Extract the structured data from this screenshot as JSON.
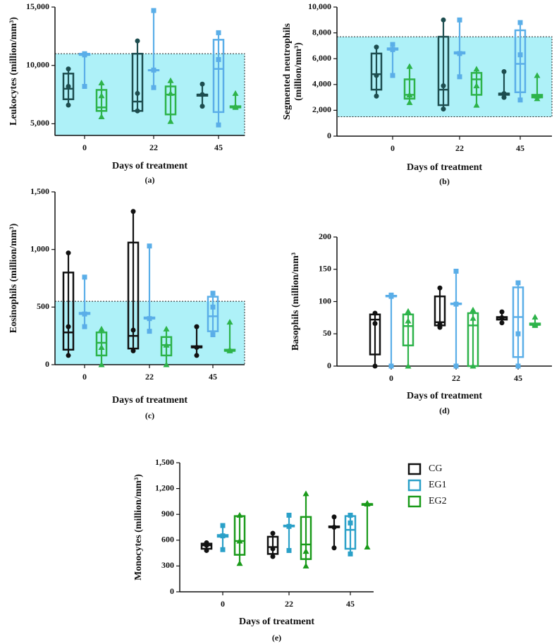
{
  "chart_data": [
    {
      "type": "box",
      "panel": "(a)",
      "ylabel": [
        "Leukocytes (million/mm³)"
      ],
      "xlabel": "Days of treatment",
      "categories": [
        "0",
        "22",
        "45"
      ],
      "ylim": [
        4000,
        15000
      ],
      "yticks": [
        {
          "value": 5000,
          "label": "5,000"
        },
        {
          "value": 10000,
          "label": "10,000"
        },
        {
          "value": 15000,
          "label": "15,000"
        }
      ],
      "reference_range": [
        4000,
        11000
      ],
      "series": [
        {
          "color": "#1d4d4f",
          "boxes": [
            {
              "min": 6600,
              "q1": 7100,
              "median": 8000,
              "q3": 9300,
              "max": 9700,
              "points": [
                6600,
                8200,
                9700
              ]
            },
            {
              "min": 6000,
              "q1": 6100,
              "median": 6900,
              "q3": 11000,
              "max": 12100,
              "points": [
                6100,
                7600,
                12100
              ]
            },
            {
              "min": 6500,
              "q1": 7400,
              "median": 7500,
              "q3": 7500,
              "max": 8400,
              "points": [
                6500,
                7500,
                8400
              ]
            }
          ]
        },
        {
          "color": "#5aaee8",
          "boxes": [
            {
              "min": 8200,
              "q1": 10900,
              "median": 10900,
              "q3": 11000,
              "max": 11000,
              "points": [
                8200,
                10900,
                11000
              ]
            },
            {
              "min": 8100,
              "q1": 9600,
              "median": 9600,
              "q3": 9600,
              "max": 14700,
              "points": [
                8100,
                9600,
                14700
              ]
            },
            {
              "min": 4900,
              "q1": 6000,
              "median": 9700,
              "q3": 12200,
              "max": 12800,
              "points": [
                4900,
                10500,
                12800
              ]
            }
          ]
        },
        {
          "color": "#2db34a",
          "boxes": [
            {
              "min": 5600,
              "q1": 6100,
              "median": 6400,
              "q3": 7900,
              "max": 8500,
              "points": [
                5600,
                7400,
                8500
              ]
            },
            {
              "min": 5200,
              "q1": 5800,
              "median": 7500,
              "q3": 8200,
              "max": 8700,
              "points": [
                5200,
                7600,
                8700
              ]
            },
            {
              "min": 6400,
              "q1": 6400,
              "median": 6400,
              "q3": 6500,
              "max": 7600,
              "points": [
                6400,
                6500,
                7600
              ]
            }
          ]
        }
      ]
    },
    {
      "type": "box",
      "panel": "(b)",
      "ylabel": [
        "Segmented neutrophils",
        "(million/mm³)"
      ],
      "xlabel": "Days of treatment",
      "categories": [
        "0",
        "22",
        "45"
      ],
      "ylim": [
        0,
        10000
      ],
      "yticks": [
        0,
        {
          "value": 2000,
          "label": "2,000"
        },
        {
          "value": 4000,
          "label": "4,000"
        },
        {
          "value": 6000,
          "label": "6,000"
        },
        {
          "value": 8000,
          "label": "8,000"
        },
        {
          "value": 10000,
          "label": "10,000"
        }
      ],
      "reference_range": [
        1500,
        7700
      ],
      "series": [
        {
          "color": "#1d4d4f",
          "boxes": [
            {
              "min": 3100,
              "q1": 3600,
              "median": 4800,
              "q3": 6400,
              "max": 6900,
              "points": [
                3100,
                4700,
                6900
              ]
            },
            {
              "min": 2100,
              "q1": 2400,
              "median": 3600,
              "q3": 7700,
              "max": 9000,
              "points": [
                2100,
                3900,
                9000
              ]
            },
            {
              "min": 3000,
              "q1": 3200,
              "median": 3300,
              "q3": 3300,
              "max": 5000,
              "points": [
                3000,
                3300,
                5000
              ]
            }
          ]
        },
        {
          "color": "#5aaee8",
          "boxes": [
            {
              "min": 4700,
              "q1": 6700,
              "median": 6700,
              "q3": 6800,
              "max": 7100,
              "points": [
                4700,
                6700,
                7100
              ]
            },
            {
              "min": 4600,
              "q1": 6400,
              "median": 6400,
              "q3": 6500,
              "max": 9000,
              "points": [
                4600,
                6400,
                9000
              ]
            },
            {
              "min": 2800,
              "q1": 3400,
              "median": 5600,
              "q3": 8200,
              "max": 8800,
              "points": [
                2800,
                6300,
                8800
              ]
            }
          ]
        },
        {
          "color": "#2db34a",
          "boxes": [
            {
              "min": 2600,
              "q1": 2900,
              "median": 3200,
              "q3": 4400,
              "max": 5400,
              "points": [
                2600,
                3200,
                5400
              ]
            },
            {
              "min": 2400,
              "q1": 3200,
              "median": 4400,
              "q3": 4900,
              "max": 5200,
              "points": [
                2400,
                3900,
                5200
              ]
            },
            {
              "min": 2900,
              "q1": 3000,
              "median": 3100,
              "q3": 3200,
              "max": 4700,
              "points": [
                2900,
                3100,
                4700
              ]
            }
          ]
        }
      ]
    },
    {
      "type": "box",
      "panel": "(c)",
      "ylabel": [
        "Eosinophils (million/mm³)"
      ],
      "xlabel": "Days of treatment",
      "categories": [
        "0",
        "22",
        "45"
      ],
      "ylim": [
        0,
        1500
      ],
      "yticks": [
        0,
        500,
        {
          "value": 1000,
          "label": "1,000"
        },
        {
          "value": 1500,
          "label": "1,500"
        }
      ],
      "reference_range": [
        0,
        550
      ],
      "series": [
        {
          "color": "#111111",
          "boxes": [
            {
              "min": 80,
              "q1": 130,
              "median": 280,
              "q3": 800,
              "max": 970,
              "points": [
                80,
                330,
                970
              ]
            },
            {
              "min": 120,
              "q1": 140,
              "median": 250,
              "q3": 1060,
              "max": 1330,
              "points": [
                120,
                300,
                1330
              ]
            },
            {
              "min": 80,
              "q1": 150,
              "median": 150,
              "q3": 160,
              "max": 330,
              "points": [
                80,
                150,
                330
              ]
            }
          ]
        },
        {
          "color": "#5aaee8",
          "boxes": [
            {
              "min": 330,
              "q1": 440,
              "median": 440,
              "q3": 450,
              "max": 760,
              "points": [
                330,
                440,
                760
              ]
            },
            {
              "min": 290,
              "q1": 400,
              "median": 400,
              "q3": 410,
              "max": 1030,
              "points": [
                290,
                400,
                1030
              ]
            },
            {
              "min": 260,
              "q1": 290,
              "median": 420,
              "q3": 590,
              "max": 620,
              "points": [
                260,
                500,
                620
              ]
            }
          ]
        },
        {
          "color": "#2db34a",
          "boxes": [
            {
              "min": 0,
              "q1": 80,
              "median": 190,
              "q3": 280,
              "max": 310,
              "points": [
                0,
                150,
                310
              ]
            },
            {
              "min": 0,
              "q1": 80,
              "median": 170,
              "q3": 240,
              "max": 310,
              "points": [
                0,
                170,
                310
              ]
            },
            {
              "min": 120,
              "q1": 120,
              "median": 120,
              "q3": 130,
              "max": 370,
              "points": [
                120,
                130,
                370
              ]
            }
          ]
        }
      ]
    },
    {
      "type": "box",
      "panel": "(d)",
      "ylabel": [
        "Basophils  (million/mm³"
      ],
      "xlabel": "Days of treatment",
      "categories": [
        "0",
        "22",
        "45"
      ],
      "ylim": [
        0,
        200
      ],
      "yticks": [
        0,
        50,
        100,
        150,
        200
      ],
      "series": [
        {
          "color": "#111111",
          "boxes": [
            {
              "min": 0,
              "q1": 18,
              "median": 72,
              "q3": 80,
              "max": 82,
              "points": [
                0,
                66,
                82
              ]
            },
            {
              "min": 60,
              "q1": 63,
              "median": 68,
              "q3": 108,
              "max": 121,
              "points": [
                60,
                65,
                121
              ]
            },
            {
              "min": 67,
              "q1": 72,
              "median": 75,
              "q3": 76,
              "max": 84,
              "points": [
                67,
                75,
                84
              ]
            }
          ]
        },
        {
          "color": "#5aaee8",
          "boxes": [
            {
              "min": 0,
              "q1": 108,
              "median": 108,
              "q3": 109,
              "max": 110,
              "points": [
                0,
                108,
                110
              ]
            },
            {
              "min": 0,
              "q1": 96,
              "median": 96,
              "q3": 97,
              "max": 147,
              "points": [
                0,
                96,
                147
              ]
            },
            {
              "min": 0,
              "q1": 14,
              "median": 76,
              "q3": 122,
              "max": 129,
              "points": [
                0,
                50,
                129
              ]
            }
          ]
        },
        {
          "color": "#2db34a",
          "boxes": [
            {
              "min": 0,
              "q1": 32,
              "median": 62,
              "q3": 80,
              "max": 85,
              "points": [
                0,
                70,
                85
              ]
            },
            {
              "min": 0,
              "q1": 0,
              "median": 63,
              "q3": 82,
              "max": 87,
              "points": [
                0,
                74,
                87
              ]
            },
            {
              "min": 63,
              "q1": 64,
              "median": 64,
              "q3": 66,
              "max": 76,
              "points": [
                63,
                65,
                76
              ]
            }
          ]
        }
      ]
    },
    {
      "type": "box",
      "panel": "(e)",
      "ylabel": [
        "Monocytes  (million/mm³)"
      ],
      "xlabel": "Days of treatment",
      "categories": [
        "0",
        "22",
        "45"
      ],
      "ylim": [
        0,
        1500
      ],
      "yticks": [
        0,
        300,
        600,
        900,
        {
          "value": 1200,
          "label": "1,200"
        },
        {
          "value": 1500,
          "label": "1,500"
        }
      ],
      "series": [
        {
          "name": "CG",
          "color": "#111111",
          "boxes": [
            {
              "min": 480,
              "q1": 500,
              "median": 540,
              "q3": 560,
              "max": 570,
              "points": [
                480,
                540,
                570
              ]
            },
            {
              "min": 410,
              "q1": 440,
              "median": 520,
              "q3": 640,
              "max": 680,
              "points": [
                410,
                500,
                680
              ]
            },
            {
              "min": 510,
              "q1": 750,
              "median": 750,
              "q3": 760,
              "max": 870,
              "points": [
                510,
                750,
                870
              ]
            }
          ]
        },
        {
          "name": "EG1",
          "color": "#2aa0c8",
          "boxes": [
            {
              "min": 490,
              "q1": 640,
              "median": 650,
              "q3": 660,
              "max": 770,
              "points": [
                490,
                650,
                770
              ]
            },
            {
              "min": 480,
              "q1": 760,
              "median": 760,
              "q3": 770,
              "max": 890,
              "points": [
                480,
                760,
                890
              ]
            },
            {
              "min": 440,
              "q1": 500,
              "median": 720,
              "q3": 880,
              "max": 890,
              "points": [
                440,
                800,
                890
              ]
            }
          ]
        },
        {
          "name": "EG2",
          "color": "#1a9a1a",
          "boxes": [
            {
              "min": 330,
              "q1": 430,
              "median": 590,
              "q3": 880,
              "max": 890,
              "points": [
                330,
                590,
                890
              ]
            },
            {
              "min": 300,
              "q1": 380,
              "median": 550,
              "q3": 870,
              "max": 1140,
              "points": [
                300,
                470,
                1140
              ]
            },
            {
              "min": 520,
              "q1": 1010,
              "median": 1020,
              "q3": 1020,
              "max": 1030,
              "points": [
                520,
                1020,
                1030
              ]
            }
          ]
        }
      ]
    }
  ]
}
